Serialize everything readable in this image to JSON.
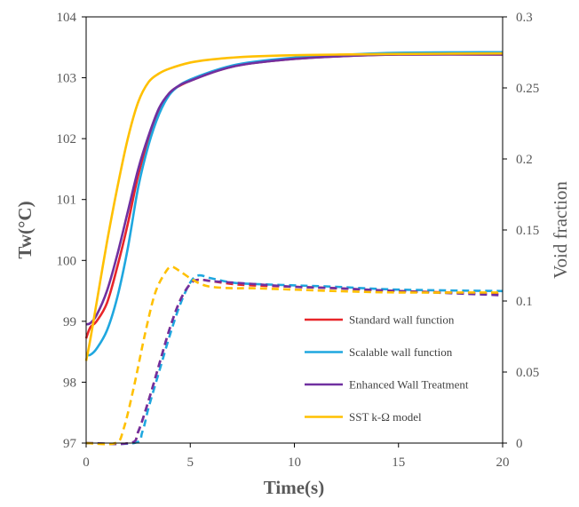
{
  "chart_data": {
    "type": "line",
    "xlabel": "Time(s)",
    "ylabel": "Tw(°C)",
    "y2label": "Void fraction",
    "xlim": [
      0,
      20
    ],
    "ylim": [
      97,
      104
    ],
    "y2lim": [
      0,
      0.3
    ],
    "xticks": [
      "0",
      "5",
      "10",
      "15",
      "20"
    ],
    "yticks": [
      "97",
      "98",
      "99",
      "100",
      "101",
      "102",
      "103",
      "104"
    ],
    "y2ticks": [
      "0",
      "0.05",
      "0.1",
      "0.15",
      "0.2",
      "0.25",
      "0.3"
    ],
    "grid": false,
    "legend_position": "bottom-right",
    "series": [
      {
        "name": "Standard wall function",
        "color": "#e8262a",
        "tw": {
          "x": [
            0,
            0.2,
            0.5,
            1.0,
            1.5,
            2.0,
            2.5,
            3.0,
            3.5,
            4.0,
            4.5,
            5.0,
            6.0,
            7.0,
            8.0,
            10.0,
            12.0,
            15.0,
            20.0
          ],
          "y": [
            98.72,
            98.9,
            99.0,
            99.3,
            99.9,
            100.6,
            101.4,
            102.0,
            102.45,
            102.75,
            102.87,
            102.95,
            103.08,
            103.18,
            103.24,
            103.31,
            103.35,
            103.38,
            103.38
          ]
        },
        "void": {
          "x": [
            0,
            2.1,
            2.5,
            3.0,
            3.5,
            4.0,
            4.5,
            5.0,
            5.4,
            6.0,
            7.0,
            8.0,
            10.0,
            12.0,
            15.0,
            20.0
          ],
          "y": [
            0,
            0,
            0.008,
            0.03,
            0.055,
            0.08,
            0.1,
            0.112,
            0.115,
            0.114,
            0.112,
            0.111,
            0.11,
            0.109,
            0.107,
            0.105
          ]
        }
      },
      {
        "name": "Scalable wall function",
        "color": "#1fa7df",
        "tw": {
          "x": [
            0,
            0.2,
            0.5,
            1.0,
            1.5,
            2.0,
            2.5,
            3.0,
            3.5,
            4.0,
            4.5,
            5.0,
            6.0,
            7.0,
            8.0,
            10.0,
            12.0,
            15.0,
            20.0
          ],
          "y": [
            98.45,
            98.45,
            98.55,
            98.85,
            99.4,
            100.2,
            101.2,
            101.9,
            102.4,
            102.72,
            102.88,
            102.97,
            103.1,
            103.2,
            103.26,
            103.33,
            103.37,
            103.41,
            103.42
          ]
        },
        "void": {
          "x": [
            0,
            2.3,
            2.7,
            3.0,
            3.5,
            4.0,
            4.5,
            5.0,
            5.4,
            6.0,
            7.0,
            8.0,
            10.0,
            12.0,
            15.0,
            20.0
          ],
          "y": [
            0,
            0,
            0.008,
            0.025,
            0.05,
            0.075,
            0.097,
            0.113,
            0.118,
            0.116,
            0.113,
            0.112,
            0.111,
            0.11,
            0.108,
            0.107
          ]
        }
      },
      {
        "name": "Enhanced Wall Treatment",
        "color": "#7030a0",
        "tw": {
          "x": [
            0,
            0.2,
            0.5,
            1.0,
            1.5,
            2.0,
            2.5,
            3.0,
            3.5,
            4.0,
            4.5,
            5.0,
            6.0,
            7.0,
            8.0,
            10.0,
            12.0,
            15.0,
            20.0
          ],
          "y": [
            98.95,
            98.97,
            99.1,
            99.5,
            100.1,
            100.8,
            101.5,
            102.05,
            102.5,
            102.75,
            102.88,
            102.95,
            103.08,
            103.18,
            103.24,
            103.31,
            103.35,
            103.38,
            103.38
          ]
        },
        "void": {
          "x": [
            0,
            2.1,
            2.5,
            3.0,
            3.5,
            4.0,
            4.5,
            5.0,
            5.4,
            6.0,
            7.0,
            8.0,
            10.0,
            12.0,
            15.0,
            20.0
          ],
          "y": [
            0,
            0,
            0.008,
            0.03,
            0.055,
            0.08,
            0.1,
            0.112,
            0.115,
            0.114,
            0.113,
            0.112,
            0.11,
            0.109,
            0.107,
            0.104
          ]
        }
      },
      {
        "name": "SST k-Ω model",
        "color": "#ffc000",
        "tw": {
          "x": [
            0,
            0.2,
            0.5,
            1.0,
            1.5,
            2.0,
            2.5,
            3.0,
            3.5,
            4.0,
            5.0,
            6.0,
            7.0,
            8.0,
            10.0,
            12.0,
            15.0,
            20.0
          ],
          "y": [
            98.35,
            98.7,
            99.3,
            100.3,
            101.2,
            102.0,
            102.6,
            102.93,
            103.07,
            103.15,
            103.25,
            103.3,
            103.33,
            103.35,
            103.37,
            103.38,
            103.39,
            103.4
          ]
        },
        "void": {
          "x": [
            0,
            1.4,
            1.8,
            2.3,
            2.8,
            3.3,
            3.8,
            4.1,
            4.5,
            5.0,
            5.5,
            6.0,
            7.0,
            8.0,
            10.0,
            12.0,
            15.0,
            20.0
          ],
          "y": [
            0,
            0,
            0.01,
            0.04,
            0.075,
            0.105,
            0.12,
            0.124,
            0.121,
            0.116,
            0.112,
            0.11,
            0.109,
            0.109,
            0.108,
            0.107,
            0.106,
            0.106
          ]
        }
      }
    ]
  }
}
